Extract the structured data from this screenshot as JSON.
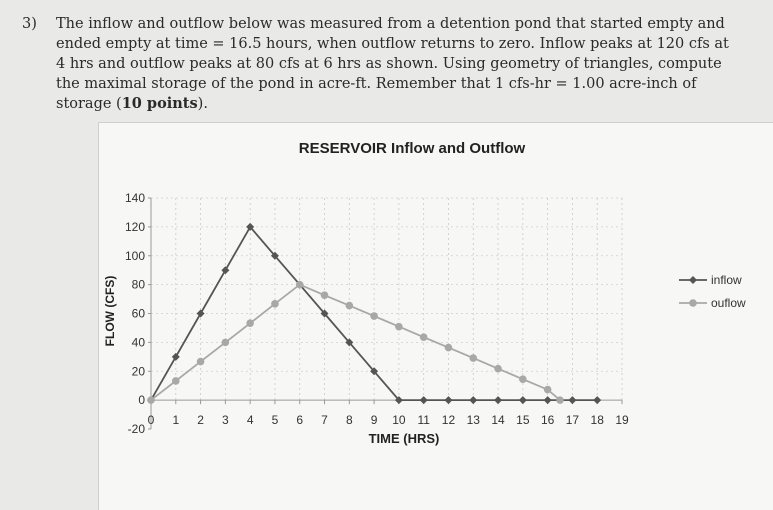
{
  "question": {
    "number": "3)",
    "text_before_bold": "The inflow and outflow below was measured from a detention pond that started empty and ended empty at time = 16.5 hours, when outflow returns to zero. Inflow peaks at 120 cfs at 4 hrs and outflow peaks at 80 cfs at 6 hrs as shown. Using geometry of triangles, compute the maximal storage of the pond in acre-ft. Remember that 1 cfs-hr = 1.00 acre-inch of storage (",
    "bold_text": "10 points",
    "text_after_bold": ")."
  },
  "chart_data": {
    "type": "line",
    "title": "RESERVOIR Inflow and Outflow",
    "xlabel": "TIME (HRS)",
    "ylabel": "FLOW (CFS)",
    "xlim": [
      0,
      19
    ],
    "ylim": [
      -20,
      140
    ],
    "x_ticks": [
      0,
      1,
      2,
      3,
      4,
      5,
      6,
      7,
      8,
      9,
      10,
      11,
      12,
      13,
      14,
      15,
      16,
      17,
      18,
      19
    ],
    "y_ticks": [
      -20,
      0,
      20,
      40,
      60,
      80,
      100,
      120,
      140
    ],
    "grid": true,
    "legend_position": "right",
    "series": [
      {
        "name": "inflow",
        "color": "#555555",
        "marker": "diamond",
        "x": [
          0,
          1,
          2,
          3,
          4,
          5,
          6,
          7,
          8,
          9,
          10,
          11,
          12,
          13,
          14,
          15,
          16,
          17,
          18
        ],
        "y": [
          0,
          30,
          60,
          90,
          120,
          100,
          80,
          60,
          40,
          20,
          0,
          0,
          0,
          0,
          0,
          0,
          0,
          0,
          0
        ]
      },
      {
        "name": "ouflow",
        "color": "#a8a8a8",
        "marker": "circle",
        "x": [
          0,
          1,
          2,
          3,
          4,
          5,
          6,
          7,
          8,
          9,
          10,
          11,
          12,
          13,
          14,
          15,
          16,
          16.5
        ],
        "y": [
          0,
          13.3,
          26.7,
          40,
          53.3,
          66.7,
          80,
          72.7,
          65.5,
          58.2,
          50.9,
          43.6,
          36.4,
          29.1,
          21.8,
          14.5,
          7.3,
          0
        ]
      }
    ]
  }
}
